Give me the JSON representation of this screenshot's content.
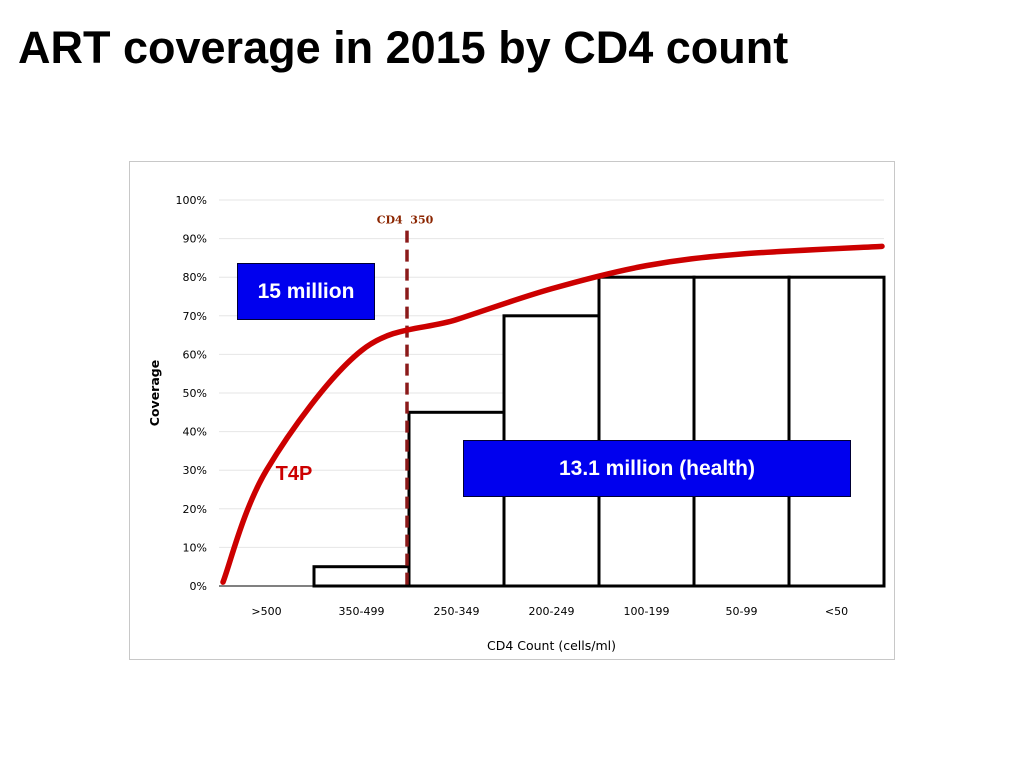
{
  "slide": {
    "title": "ART coverage in 2015 by CD4 count"
  },
  "colors": {
    "curve": "#cc0000",
    "threshold": "#8b1a1a",
    "threshold_label": "#8b2500",
    "curve_label": "#cc0000",
    "callout_bg": "#0000ee",
    "bar_stroke": "#000000",
    "grid": "#e6e6e6"
  },
  "chart_data": {
    "type": "bar",
    "categories": [
      ">500",
      "350-499",
      "250-349",
      "200-249",
      "100-199",
      "50-99",
      "<50"
    ],
    "values": [
      0,
      5,
      45,
      70,
      80,
      80,
      80
    ],
    "xlabel": "CD4 Count (cells/ml)",
    "ylabel": "Coverage",
    "ylim": [
      0,
      100
    ],
    "yticks": [
      "0%",
      "10%",
      "20%",
      "30%",
      "40%",
      "50%",
      "60%",
      "70%",
      "80%",
      "90%",
      "100%"
    ],
    "grid": true,
    "threshold": {
      "label": "CD4  350",
      "category_boundary": "between 350-499 and 250-349"
    },
    "curve": {
      "label": "T4P",
      "values_at_category_centers": [
        30,
        61,
        69,
        77,
        83,
        86,
        88
      ],
      "start_value": 1
    },
    "annotations": [
      "15 million",
      "13.1 million (health)"
    ]
  }
}
